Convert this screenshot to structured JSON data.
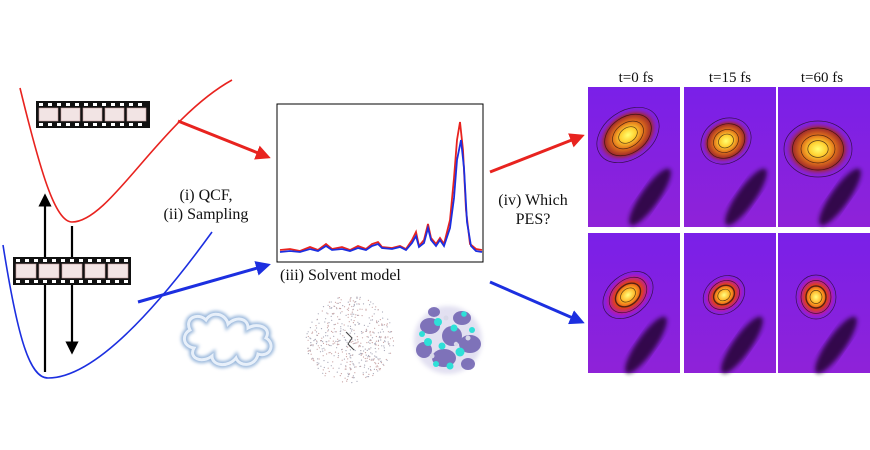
{
  "labels": {
    "qcf_line1": "(i) QCF,",
    "qcf_line2": "(ii) Sampling",
    "solvent_model": "(iii) Solvent model",
    "which_line1": "(iv) Which",
    "which_line2": "PES?"
  },
  "panel_headers": [
    "t=0 fs",
    "t=15 fs",
    "t=60 fs"
  ],
  "colors": {
    "excited_state": "#e8231f",
    "ground_state": "#1c2fe0",
    "panel_background": "#8a1ee0",
    "hot_core": "#ffff60"
  },
  "icons": {
    "film_strip": "film-strip-icon",
    "cavity": "solvent-cavity-icon",
    "point_cloud": "explicit-solvent-cloud-icon",
    "molecule_cluster": "solvated-cluster-icon"
  }
}
